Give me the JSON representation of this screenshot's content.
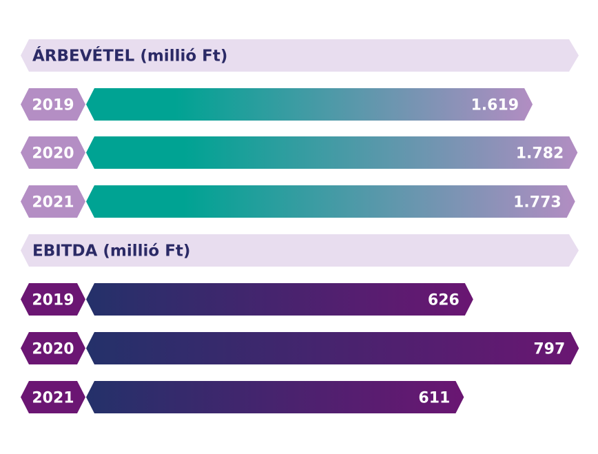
{
  "chart_data": [
    {
      "type": "bar",
      "orientation": "horizontal",
      "title": "ÁRBEVÉTEL (millió Ft)",
      "categories": [
        "2019",
        "2020",
        "2021"
      ],
      "values": [
        1619,
        1782,
        1773
      ],
      "value_labels": [
        "1.619",
        "1.782",
        "1.773"
      ],
      "colors": {
        "badge": "#b48ec4",
        "header_bg": "#e8ddef",
        "header_text": "#2b2a66",
        "grad_start": "#00a393",
        "grad_end": "#b28dc2"
      }
    },
    {
      "type": "bar",
      "orientation": "horizontal",
      "title": "EBITDA (millió Ft)",
      "categories": [
        "2019",
        "2020",
        "2021"
      ],
      "values": [
        626,
        797,
        611
      ],
      "value_labels": [
        "626",
        "797",
        "611"
      ],
      "colors": {
        "badge": "#6b1673",
        "header_bg": "#e8ddef",
        "header_text": "#2b2a66",
        "grad_start": "#24316a",
        "grad_end": "#6a1672"
      }
    }
  ]
}
